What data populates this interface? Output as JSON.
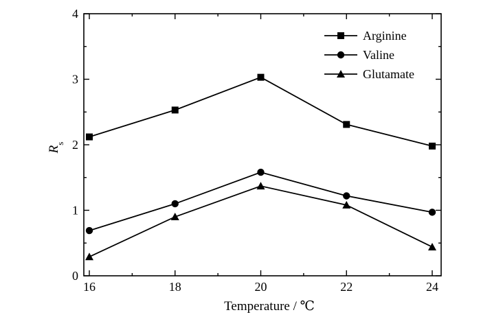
{
  "chart_data": {
    "type": "line",
    "x": [
      16,
      18,
      20,
      22,
      24
    ],
    "xlabel": "Temperature / ℃",
    "ylabel_main": "R",
    "ylabel_sub": "s",
    "xlim": [
      16,
      24
    ],
    "ylim": [
      0,
      4
    ],
    "x_ticks": [
      16,
      18,
      20,
      22,
      24
    ],
    "y_ticks": [
      0,
      1,
      2,
      3,
      4
    ],
    "grid": false,
    "legend_position": "top-right",
    "series": [
      {
        "name": "Arginine",
        "marker": "square",
        "values": [
          2.12,
          2.53,
          3.03,
          2.31,
          1.98
        ]
      },
      {
        "name": "Valine",
        "marker": "circle",
        "values": [
          0.69,
          1.1,
          1.58,
          1.22,
          0.97
        ]
      },
      {
        "name": "Glutamate",
        "marker": "triangle",
        "values": [
          0.29,
          0.9,
          1.37,
          1.08,
          0.44
        ]
      }
    ]
  }
}
